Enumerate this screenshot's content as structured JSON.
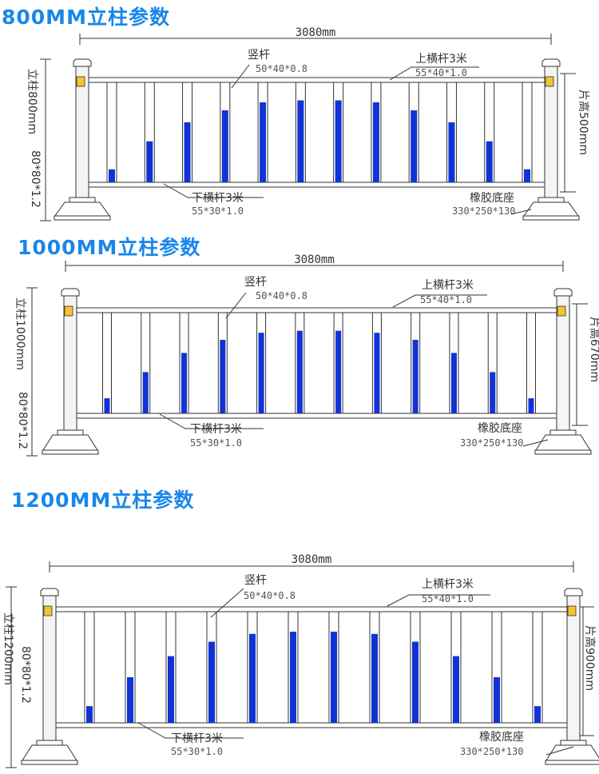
{
  "colors": {
    "title": "#1a86e8",
    "blue_fill": "#1133d6",
    "reflector": "#f4c430",
    "line": "#333333",
    "post_fill": "#f4f4f4"
  },
  "sections": [
    {
      "title": "800MM立柱参数",
      "width_label": "3080mm",
      "post_label": "立柱800mm",
      "post_spec": "80*80*1.2",
      "panel_label": "片高500mm",
      "vertical_bar": "竖杆",
      "vertical_bar_spec": "50*40*0.8",
      "top_rail": "上横杆3米",
      "top_rail_spec": "55*40*1.0",
      "bottom_rail": "下横杆3米",
      "bottom_rail_spec": "55*30*1.0",
      "base": "橡胶底座",
      "base_spec": "330*250*130",
      "fill_levels": [
        0.13,
        0.41,
        0.6,
        0.72,
        0.8,
        0.82,
        0.82,
        0.8,
        0.72,
        0.6,
        0.41,
        0.13
      ]
    },
    {
      "title": "1000MM立柱参数",
      "width_label": "3080mm",
      "post_label": "立柱1000mm",
      "post_spec": "80*80*1.2",
      "panel_label": "片高670mm",
      "vertical_bar": "竖杆",
      "vertical_bar_spec": "50*40*0.8",
      "top_rail": "上横杆3米",
      "top_rail_spec": "55*40*1.0",
      "bottom_rail": "下横杆3米",
      "bottom_rail_spec": "55*30*1.0",
      "base": "橡胶底座",
      "base_spec": "330*250*130",
      "fill_levels": [
        0.15,
        0.41,
        0.6,
        0.73,
        0.8,
        0.82,
        0.82,
        0.8,
        0.73,
        0.6,
        0.41,
        0.15
      ]
    },
    {
      "title": "1200MM立柱参数",
      "width_label": "3080mm",
      "post_label": "立柱1200mm",
      "post_spec": "80*80*1.2",
      "panel_label": "片高900mm",
      "vertical_bar": "竖杆",
      "vertical_bar_spec": "50*40*0.8",
      "top_rail": "上横杆3米",
      "top_rail_spec": "55*40*1.0",
      "bottom_rail": "下横杆3米",
      "bottom_rail_spec": "55*30*1.0",
      "base": "橡胶底座",
      "base_spec": "330*250*130",
      "fill_levels": [
        0.15,
        0.41,
        0.6,
        0.73,
        0.8,
        0.82,
        0.82,
        0.8,
        0.73,
        0.6,
        0.41,
        0.15
      ]
    }
  ]
}
